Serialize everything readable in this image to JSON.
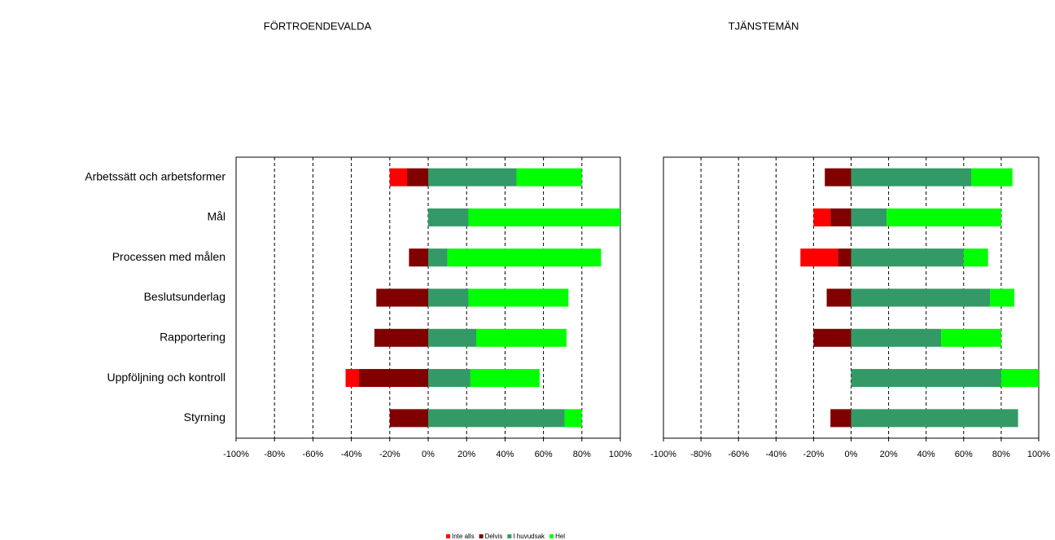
{
  "chart_data": [
    {
      "type": "bar",
      "title": "FÖRTROENDEVALDA",
      "categories": [
        "Arbetssätt och arbetsformer",
        "Mål",
        "Processen med målen",
        "Beslutsunderlag",
        "Rapportering",
        "Uppföljning och kontroll",
        "Styrning"
      ],
      "series": [
        {
          "name": "Inte alls",
          "color": "#ff0000",
          "values": [
            -9,
            0,
            0,
            0,
            0,
            -7,
            0
          ]
        },
        {
          "name": "Delvis",
          "color": "#800000",
          "values": [
            -11,
            0,
            -10,
            -27,
            -28,
            -36,
            -20
          ]
        },
        {
          "name": "I huvudsak",
          "color": "#339966",
          "values": [
            46,
            21,
            10,
            21,
            25,
            22,
            71
          ]
        },
        {
          "name": "Hel",
          "color": "#00ff00",
          "values": [
            34,
            79,
            80,
            52,
            47,
            36,
            9
          ]
        }
      ],
      "xlim": [
        -100,
        100
      ],
      "xticks": [
        {
          "value": -100,
          "label": "-100%"
        },
        {
          "value": -80,
          "label": "-80%"
        },
        {
          "value": -60,
          "label": "-60%"
        },
        {
          "value": -40,
          "label": "-40%"
        },
        {
          "value": -20,
          "label": "-20%"
        },
        {
          "value": 0,
          "label": "0%"
        },
        {
          "value": 20,
          "label": "20%"
        },
        {
          "value": 40,
          "label": "40%"
        },
        {
          "value": 60,
          "label": "60%"
        },
        {
          "value": 80,
          "label": "80%"
        },
        {
          "value": 100,
          "label": "100%"
        }
      ],
      "grid": true
    },
    {
      "type": "bar",
      "title": "TJÄNSTEMÄN",
      "series": [
        {
          "name": "Inte alls",
          "color": "#ff0000",
          "values": [
            0,
            -9,
            -20,
            0,
            0,
            0,
            0
          ]
        },
        {
          "name": "Delvis",
          "color": "#800000",
          "values": [
            -14,
            -11,
            -7,
            -13,
            -20,
            0,
            -11
          ]
        },
        {
          "name": "I huvudsak",
          "color": "#339966",
          "values": [
            64,
            19,
            60,
            74,
            48,
            80,
            89
          ]
        },
        {
          "name": "Hel",
          "color": "#00ff00",
          "values": [
            22,
            61,
            13,
            13,
            32,
            20,
            0
          ]
        }
      ],
      "xlim": [
        -100,
        100
      ],
      "xticks": [
        {
          "value": -100,
          "label": "-100%"
        },
        {
          "value": -80,
          "label": "-80%"
        },
        {
          "value": -60,
          "label": "-60%"
        },
        {
          "value": -40,
          "label": "-40%"
        },
        {
          "value": -20,
          "label": "-20%"
        },
        {
          "value": 0,
          "label": "0%"
        },
        {
          "value": 20,
          "label": "20%"
        },
        {
          "value": 40,
          "label": "40%"
        },
        {
          "value": 60,
          "label": "60%"
        },
        {
          "value": 80,
          "label": "80%"
        },
        {
          "value": 100,
          "label": "100%"
        }
      ],
      "grid": true
    }
  ]
}
